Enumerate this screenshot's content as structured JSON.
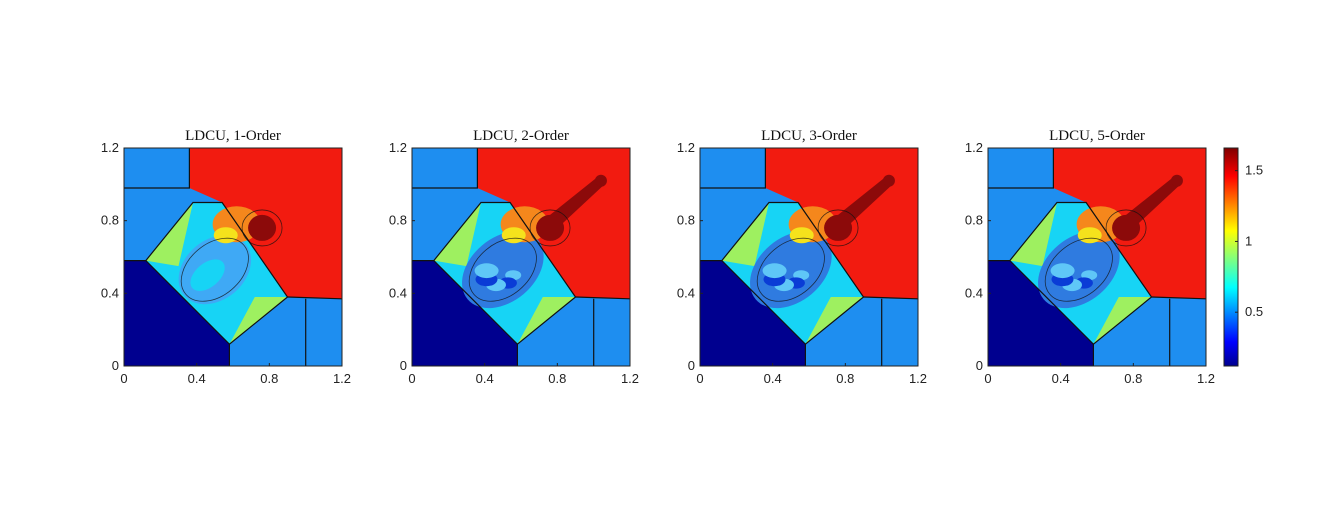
{
  "chart_data": [
    {
      "type": "heatmap",
      "title": "LDCU, 1-Order",
      "xlim": [
        0,
        1.2
      ],
      "ylim": [
        0,
        1.2
      ],
      "xticks": [
        "0",
        "0.4",
        "0.8",
        "1.2"
      ],
      "yticks": [
        "0",
        "0.4",
        "0.8",
        "1.2"
      ],
      "colormap": "jet",
      "clim": [
        0.12,
        1.66
      ]
    },
    {
      "type": "heatmap",
      "title": "LDCU, 2-Order",
      "xlim": [
        0,
        1.2
      ],
      "ylim": [
        0,
        1.2
      ],
      "xticks": [
        "0",
        "0.4",
        "0.8",
        "1.2"
      ],
      "yticks": [
        "0",
        "0.4",
        "0.8",
        "1.2"
      ],
      "colormap": "jet",
      "clim": [
        0.12,
        1.66
      ]
    },
    {
      "type": "heatmap",
      "title": "LDCU, 3-Order",
      "xlim": [
        0,
        1.2
      ],
      "ylim": [
        0,
        1.2
      ],
      "xticks": [
        "0",
        "0.4",
        "0.8",
        "1.2"
      ],
      "yticks": [
        "0",
        "0.4",
        "0.8",
        "1.2"
      ],
      "colormap": "jet",
      "clim": [
        0.12,
        1.66
      ]
    },
    {
      "type": "heatmap",
      "title": "LDCU, 5-Order",
      "xlim": [
        0,
        1.2
      ],
      "ylim": [
        0,
        1.2
      ],
      "xticks": [
        "0",
        "0.4",
        "0.8",
        "1.2"
      ],
      "yticks": [
        "0",
        "0.4",
        "0.8",
        "1.2"
      ],
      "colormap": "jet",
      "clim": [
        0.12,
        1.66
      ]
    }
  ],
  "colorbar": {
    "ticks": [
      {
        "label": "1.5",
        "value": 1.5
      },
      {
        "label": "1",
        "value": 1.0
      },
      {
        "label": "0.5",
        "value": 0.5
      }
    ],
    "range": [
      0.12,
      1.66
    ]
  },
  "colors": {
    "dark_blue": "#00008F",
    "light_blue": "#1E8EF0",
    "red": "#F21B10",
    "dark_red": "#8C0A0A",
    "cyan": "#17D4F5",
    "green": "#9EF060",
    "yellow": "#F5E21C",
    "orange": "#F5871C"
  }
}
